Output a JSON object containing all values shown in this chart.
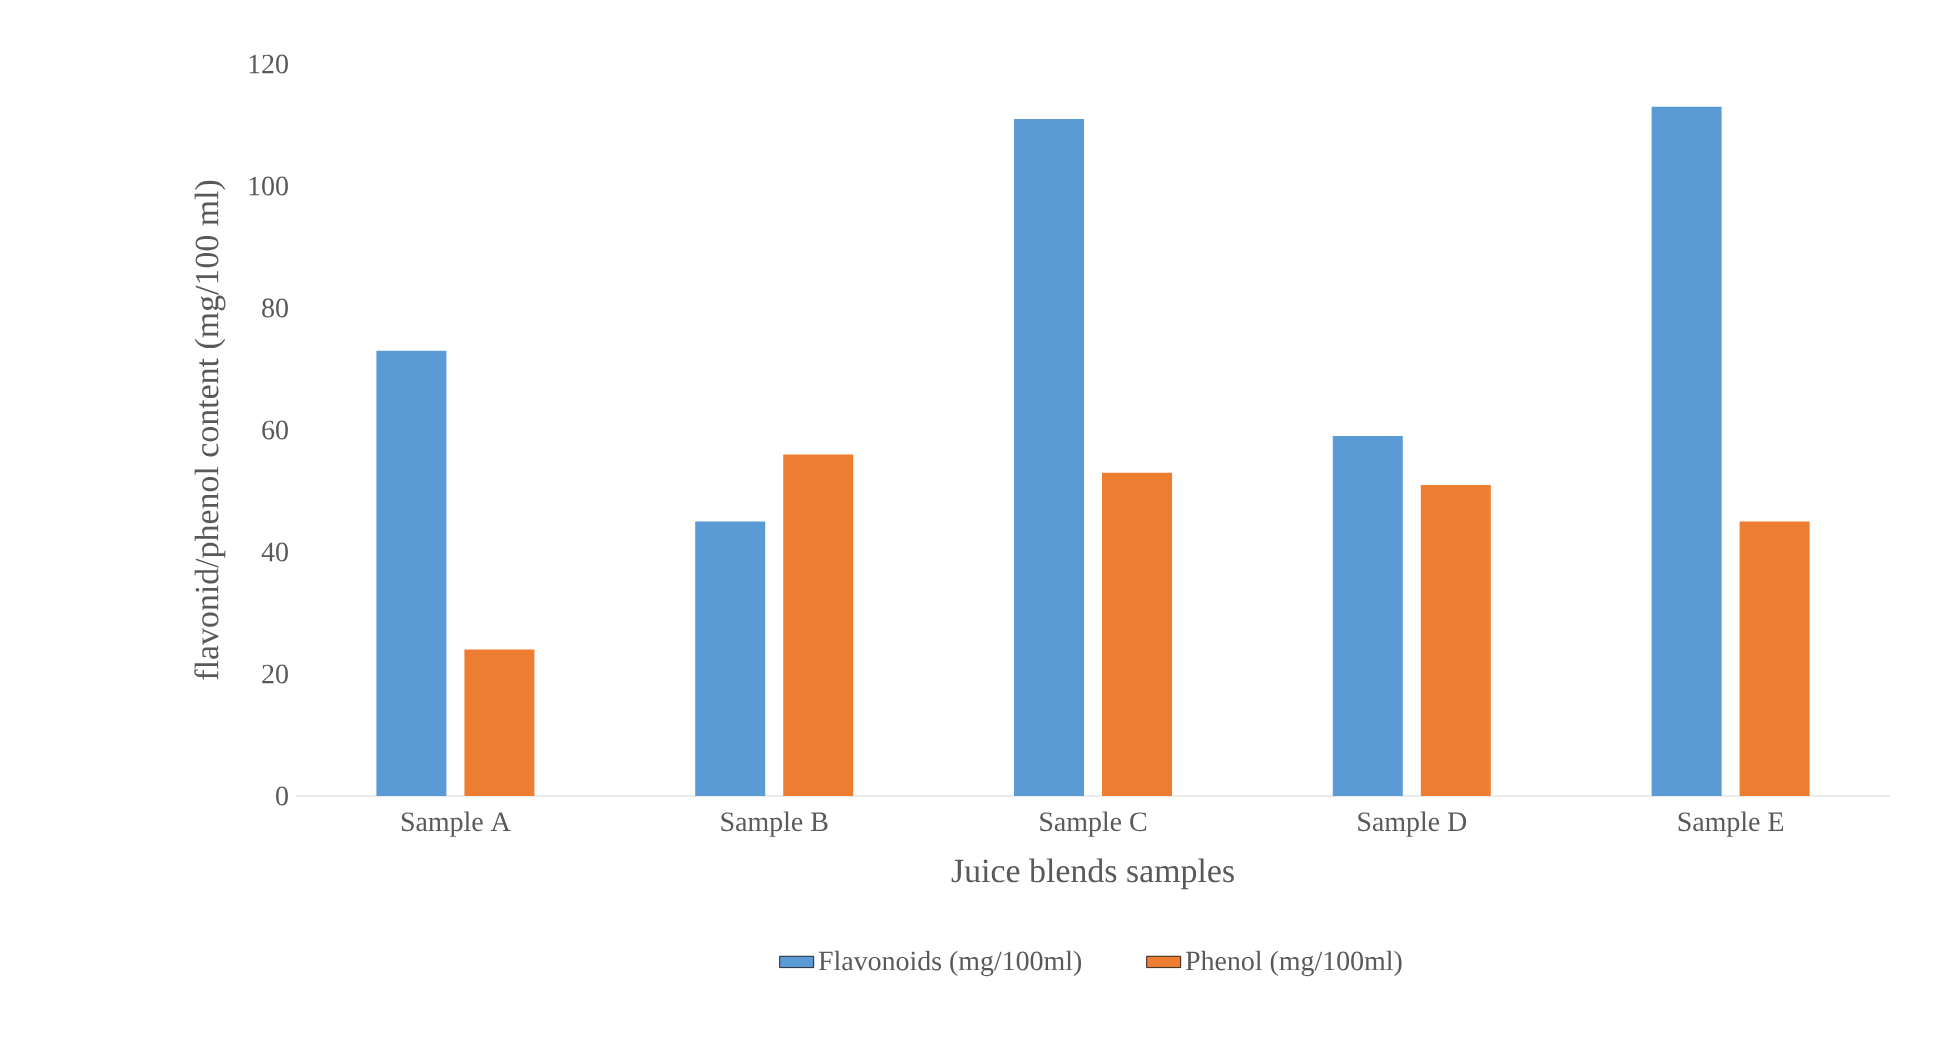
{
  "chart_data": {
    "type": "bar",
    "xlabel": "Juice blends samples",
    "ylabel": "flavonid/phenol content (mg/100 ml)",
    "categories": [
      "Sample A",
      "Sample B",
      "Sample C",
      "Sample D",
      "Sample E"
    ],
    "series": [
      {
        "name": "Flavonoids (mg/100ml)",
        "color": "#5b9bd5",
        "values": [
          73,
          45,
          111,
          59,
          113
        ]
      },
      {
        "name": "Phenol (mg/100ml)",
        "color": "#ed7d31",
        "values": [
          24,
          56,
          53,
          51,
          45
        ]
      }
    ],
    "ylim": [
      0,
      120
    ],
    "yticks": [
      0,
      20,
      40,
      60,
      80,
      100,
      120
    ],
    "grid": false,
    "legend": "bottom"
  }
}
